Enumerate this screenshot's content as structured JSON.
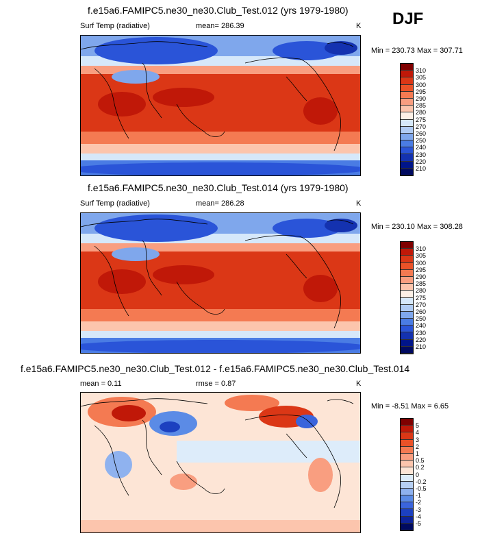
{
  "season_label": "DJF",
  "chart_data": [
    {
      "type": "heatmap",
      "title": "f.e15a6.FAMIPC5.ne30_ne30.Club_Test.012 (yrs 1979-1980)",
      "left_label": "Surf Temp (radiative)",
      "center_label": "mean= 286.39",
      "units": "K",
      "min_max": "Min = 230.73 Max = 307.71",
      "levels": [
        "310",
        "305",
        "300",
        "295",
        "290",
        "285",
        "280",
        "275",
        "270",
        "260",
        "250",
        "240",
        "230",
        "220",
        "210"
      ],
      "mean": 286.39,
      "min": 230.73,
      "max": 307.71
    },
    {
      "type": "heatmap",
      "title": "f.e15a6.FAMIPC5.ne30_ne30.Club_Test.014 (yrs 1979-1980)",
      "left_label": "Surf Temp (radiative)",
      "center_label": "mean= 286.28",
      "units": "K",
      "min_max": "Min = 230.10 Max = 308.28",
      "levels": [
        "310",
        "305",
        "300",
        "295",
        "290",
        "285",
        "280",
        "275",
        "270",
        "260",
        "250",
        "240",
        "230",
        "220",
        "210"
      ],
      "mean": 286.28,
      "min": 230.1,
      "max": 308.28
    },
    {
      "type": "heatmap",
      "title": "f.e15a6.FAMIPC5.ne30_ne30.Club_Test.012 - f.e15a6.FAMIPC5.ne30_ne30.Club_Test.014",
      "left_label": "mean =   0.11",
      "center_label": "rmse =   0.87",
      "units": "K",
      "min_max": "Min =  -8.51 Max =   6.65",
      "levels": [
        "5",
        "4",
        "3",
        "2",
        "1",
        "0.5",
        "0.2",
        "0",
        "-0.2",
        "-0.5",
        "-1",
        "-2",
        "-3",
        "-4",
        "-5"
      ],
      "mean": 0.11,
      "rmse": 0.87,
      "min": -8.51,
      "max": 6.65
    }
  ],
  "colors": {
    "abs_scale": [
      "#7f0000",
      "#c01808",
      "#db3716",
      "#ea5228",
      "#f47a52",
      "#f99e80",
      "#fcc5ad",
      "#fdf0e6",
      "#d6e8fa",
      "#b0cbf3",
      "#7fa7ec",
      "#4a7ce4",
      "#2a54d8",
      "#1432b0",
      "#00158a",
      "#000a60"
    ],
    "diff_scale": [
      "#7f0000",
      "#c01808",
      "#db3716",
      "#ea5228",
      "#f47a52",
      "#f99e80",
      "#fcc5ad",
      "#fde5d6",
      "#ddecfa",
      "#b7d0f3",
      "#8fb2ef",
      "#5b8be6",
      "#3a64dc",
      "#1c40c0",
      "#0d239a",
      "#000a60"
    ]
  }
}
